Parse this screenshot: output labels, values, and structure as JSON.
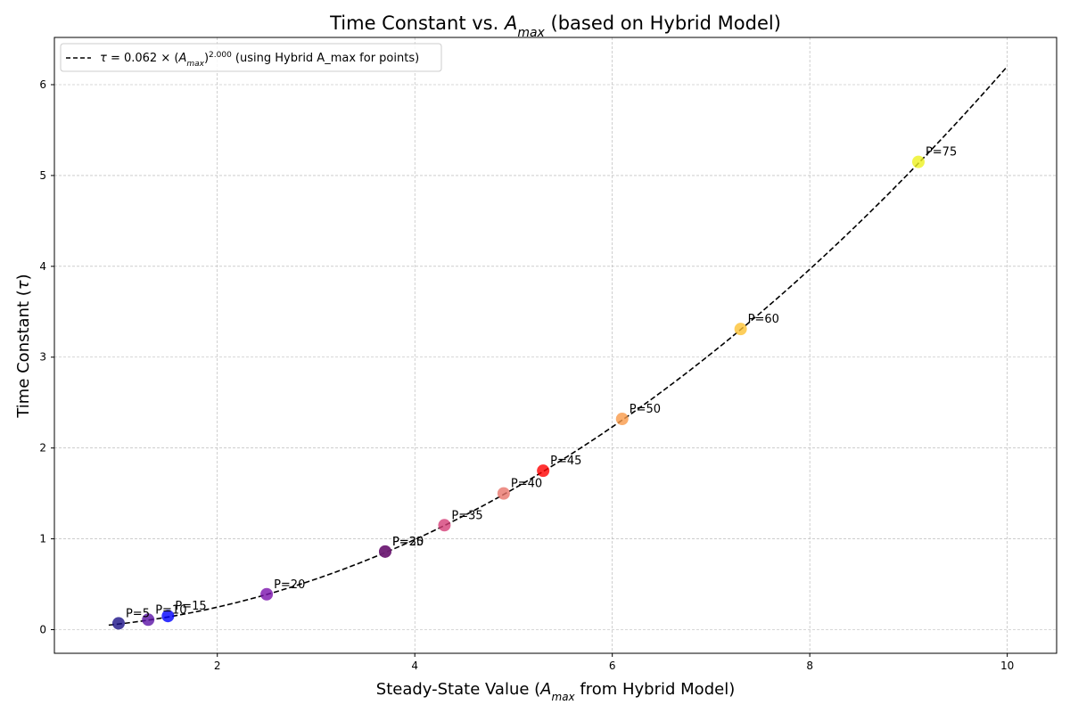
{
  "chart_data": {
    "type": "scatter",
    "title": {
      "pre": "Time Constant vs. ",
      "var": "A",
      "var_sub": "max",
      "post": " (based on Hybrid Model)"
    },
    "xlabel": {
      "pre": "Steady-State Value (",
      "var": "A",
      "var_sub": "max",
      "post": " from Hybrid Model)"
    },
    "ylabel": {
      "pre": "Time Constant (",
      "var": "τ",
      "post": ")"
    },
    "xlim": [
      0.35,
      10.5
    ],
    "ylim": [
      -0.26,
      6.52
    ],
    "xticks": [
      2,
      4,
      6,
      8,
      10
    ],
    "yticks": [
      0,
      1,
      2,
      3,
      4,
      5,
      6
    ],
    "grid": true,
    "legend_position": "top-left",
    "fit_line": {
      "legend": {
        "tau": "τ",
        "eq_mid": " = 0.062 × (",
        "var": "A",
        "var_sub": "max",
        "close": ")",
        "exp": "2.000",
        "suffix": " (using Hybrid A_max for points)"
      },
      "coefficient": 0.062,
      "exponent": 2.0,
      "x_range": [
        0.9,
        10.0
      ],
      "color": "#000000",
      "style": "dashed"
    },
    "points": [
      {
        "label": "P=5",
        "x": 1.0,
        "y": 0.07,
        "color": "#1c1287"
      },
      {
        "label": "P=10",
        "x": 1.3,
        "y": 0.11,
        "color": "#5a12a5"
      },
      {
        "label": "P=15",
        "x": 1.5,
        "y": 0.15,
        "color": "#0000ff"
      },
      {
        "label": "P=20",
        "x": 2.5,
        "y": 0.39,
        "color": "#7b12ac"
      },
      {
        "label": "P=25",
        "x": 3.7,
        "y": 0.86,
        "color": "#8b1a8c"
      },
      {
        "label": "P=30",
        "x": 3.7,
        "y": 0.86,
        "color": "#6a2070"
      },
      {
        "label": "P=35",
        "x": 4.3,
        "y": 1.15,
        "color": "#d43f78"
      },
      {
        "label": "P=40",
        "x": 4.9,
        "y": 1.5,
        "color": "#e8746a"
      },
      {
        "label": "P=45",
        "x": 5.3,
        "y": 1.75,
        "color": "#ff0000"
      },
      {
        "label": "P=50",
        "x": 6.1,
        "y": 2.32,
        "color": "#f99a48"
      },
      {
        "label": "P=60",
        "x": 7.3,
        "y": 3.31,
        "color": "#fdc233"
      },
      {
        "label": "P=75",
        "x": 9.1,
        "y": 5.15,
        "color": "#eef11f"
      }
    ]
  }
}
